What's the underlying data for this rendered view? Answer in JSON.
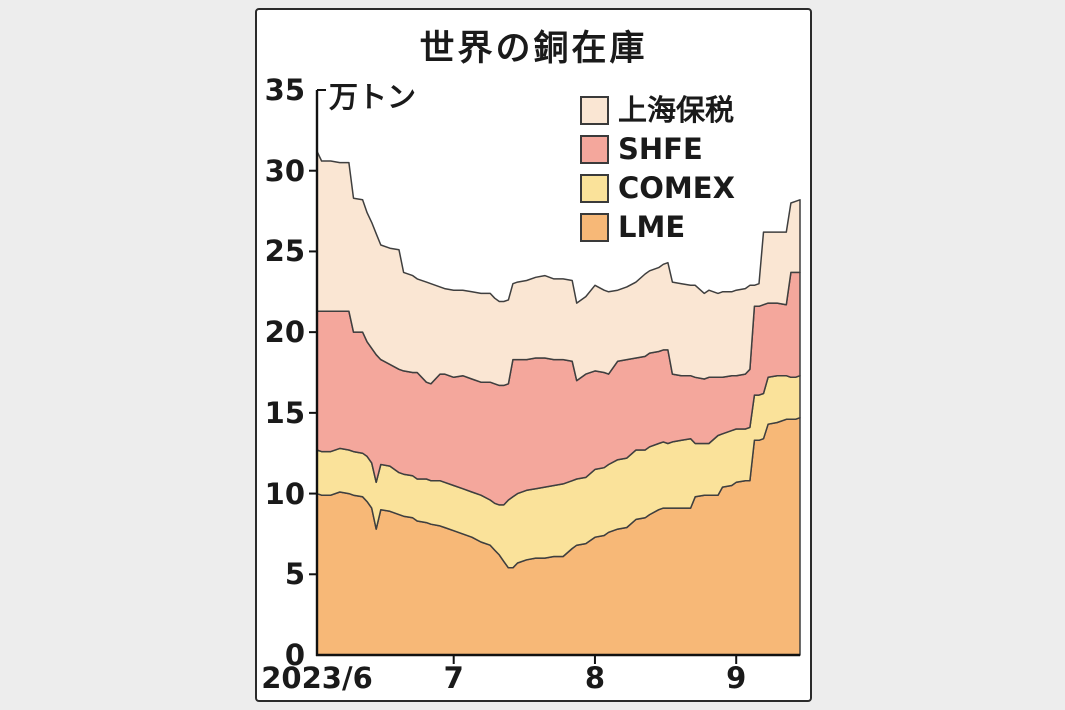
{
  "page": {
    "background_color": "#ededed",
    "card_background_color": "#ffffff",
    "card_border_color": "#2b2b2b"
  },
  "chart_data": {
    "type": "area",
    "stacked": true,
    "title": "世界の銅在庫",
    "unit": "万トン",
    "grid": false,
    "legend_position": "top-right",
    "axis_color": "#111111",
    "outline_color": "#3f3f3f",
    "x_axis": {
      "domain_days": [
        0,
        106
      ],
      "ticks": [
        {
          "label": "2023/6",
          "day": 0
        },
        {
          "label": "7",
          "day": 30
        },
        {
          "label": "8",
          "day": 61
        },
        {
          "label": "9",
          "day": 92
        }
      ]
    },
    "y_axis": {
      "min": 0,
      "max": 35,
      "ticks": [
        0,
        5,
        10,
        15,
        20,
        25,
        30,
        35
      ]
    },
    "series": [
      {
        "key": "lme",
        "label": "LME",
        "color": "#F7B877"
      },
      {
        "key": "comex",
        "label": "COMEX",
        "color": "#FAE29A"
      },
      {
        "key": "shfe",
        "label": "SHFE",
        "color": "#F4A79C"
      },
      {
        "key": "shanghai_bonded",
        "label": "上海保税",
        "color": "#FAE6D3"
      }
    ],
    "points_format": [
      "date",
      "lme",
      "comex",
      "shfe",
      "shanghai_bonded"
    ],
    "points": [
      [
        "6/1",
        10.0,
        2.7,
        8.6,
        9.9
      ],
      [
        "6/2",
        9.9,
        2.7,
        8.7,
        9.3
      ],
      [
        "6/4",
        9.9,
        2.7,
        8.7,
        9.3
      ],
      [
        "6/6",
        10.1,
        2.7,
        8.5,
        9.2
      ],
      [
        "6/8",
        10.0,
        2.7,
        8.6,
        9.2
      ],
      [
        "6/9",
        9.9,
        2.7,
        7.4,
        8.3
      ],
      [
        "6/11",
        9.8,
        2.7,
        7.5,
        8.2
      ],
      [
        "6/12",
        9.5,
        2.8,
        7.1,
        8.0
      ],
      [
        "6/13",
        9.1,
        2.8,
        7.1,
        7.8
      ],
      [
        "6/14",
        7.8,
        2.9,
        7.9,
        7.5
      ],
      [
        "6/15",
        9.0,
        2.8,
        6.5,
        7.1
      ],
      [
        "6/17",
        8.9,
        2.8,
        6.3,
        7.2
      ],
      [
        "6/19",
        8.7,
        2.6,
        6.4,
        7.4
      ],
      [
        "6/20",
        8.6,
        2.6,
        6.4,
        6.1
      ],
      [
        "6/22",
        8.5,
        2.6,
        6.4,
        6.0
      ],
      [
        "6/23",
        8.3,
        2.6,
        6.6,
        5.8
      ],
      [
        "6/25",
        8.2,
        2.7,
        6.0,
        6.2
      ],
      [
        "6/26",
        8.1,
        2.7,
        6.0,
        6.2
      ],
      [
        "6/28",
        8.0,
        2.8,
        6.6,
        5.4
      ],
      [
        "6/29",
        7.9,
        2.8,
        6.7,
        5.3
      ],
      [
        "7/1",
        7.7,
        2.8,
        6.7,
        5.4
      ],
      [
        "7/3",
        7.5,
        2.8,
        7.0,
        5.3
      ],
      [
        "7/5",
        7.3,
        2.8,
        7.0,
        5.4
      ],
      [
        "7/7",
        7.0,
        2.9,
        7.0,
        5.5
      ],
      [
        "7/9",
        6.8,
        2.8,
        7.3,
        5.5
      ],
      [
        "7/10",
        6.5,
        2.9,
        7.4,
        5.3
      ],
      [
        "7/11",
        6.2,
        3.1,
        7.4,
        5.2
      ],
      [
        "7/12",
        5.8,
        3.5,
        7.4,
        5.2
      ],
      [
        "7/13",
        5.4,
        4.2,
        7.2,
        5.2
      ],
      [
        "7/14",
        5.4,
        4.4,
        8.5,
        4.7
      ],
      [
        "7/15",
        5.7,
        4.3,
        8.3,
        4.8
      ],
      [
        "7/17",
        5.9,
        4.3,
        8.1,
        4.9
      ],
      [
        "7/19",
        6.0,
        4.3,
        8.1,
        5.0
      ],
      [
        "7/21",
        6.0,
        4.4,
        8.0,
        5.1
      ],
      [
        "7/23",
        6.1,
        4.4,
        7.8,
        5.0
      ],
      [
        "7/25",
        6.1,
        4.5,
        7.7,
        5.0
      ],
      [
        "7/27",
        6.6,
        4.2,
        7.4,
        5.0
      ],
      [
        "7/28",
        6.8,
        4.1,
        6.1,
        4.8
      ],
      [
        "7/30",
        6.9,
        4.1,
        6.4,
        4.8
      ],
      [
        "8/1",
        7.3,
        4.2,
        6.1,
        5.3
      ],
      [
        "8/3",
        7.4,
        4.2,
        5.9,
        5.1
      ],
      [
        "8/4",
        7.6,
        4.2,
        5.6,
        5.1
      ],
      [
        "8/6",
        7.8,
        4.3,
        6.1,
        4.4
      ],
      [
        "8/8",
        7.9,
        4.3,
        6.1,
        4.5
      ],
      [
        "8/10",
        8.4,
        4.3,
        5.7,
        4.7
      ],
      [
        "8/12",
        8.5,
        4.2,
        5.8,
        5.1
      ],
      [
        "8/13",
        8.7,
        4.2,
        5.8,
        5.1
      ],
      [
        "8/15",
        9.0,
        4.1,
        5.7,
        5.2
      ],
      [
        "8/16",
        9.1,
        4.1,
        5.7,
        5.3
      ],
      [
        "8/17",
        9.1,
        4.0,
        5.8,
        5.4
      ],
      [
        "8/18",
        9.1,
        4.1,
        4.2,
        5.7
      ],
      [
        "8/20",
        9.1,
        4.2,
        4.0,
        5.7
      ],
      [
        "8/22",
        9.1,
        4.3,
        3.9,
        5.6
      ],
      [
        "8/23",
        9.8,
        3.3,
        4.1,
        5.7
      ],
      [
        "8/25",
        9.9,
        3.2,
        4.0,
        5.3
      ],
      [
        "8/26",
        9.9,
        3.2,
        4.1,
        5.4
      ],
      [
        "8/28",
        9.9,
        3.7,
        3.6,
        5.2
      ],
      [
        "8/29",
        10.4,
        3.3,
        3.5,
        5.3
      ],
      [
        "8/31",
        10.5,
        3.4,
        3.4,
        5.2
      ],
      [
        "9/1",
        10.7,
        3.3,
        3.3,
        5.3
      ],
      [
        "9/3",
        10.8,
        3.2,
        3.4,
        5.3
      ],
      [
        "9/4",
        10.8,
        3.3,
        3.6,
        5.2
      ],
      [
        "9/5",
        13.3,
        2.8,
        5.5,
        1.3
      ],
      [
        "9/6",
        13.3,
        2.8,
        5.5,
        1.4
      ],
      [
        "9/7",
        13.4,
        2.8,
        5.5,
        4.5
      ],
      [
        "9/8",
        14.3,
        2.9,
        4.6,
        4.4
      ],
      [
        "9/10",
        14.4,
        2.9,
        4.5,
        4.4
      ],
      [
        "9/12",
        14.6,
        2.7,
        4.4,
        4.5
      ],
      [
        "9/13",
        14.6,
        2.6,
        6.5,
        4.3
      ],
      [
        "9/14",
        14.6,
        2.6,
        6.5,
        4.4
      ],
      [
        "9/15",
        14.7,
        2.6,
        6.4,
        4.5
      ]
    ]
  }
}
